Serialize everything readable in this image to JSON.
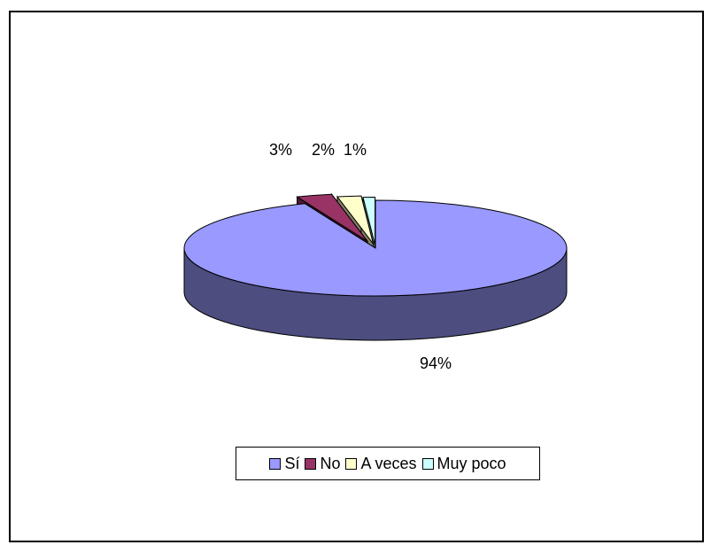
{
  "chart_data": {
    "type": "pie",
    "style": "3d-exploded",
    "title": "",
    "categories": [
      "Sí",
      "No",
      "A veces",
      "Muy poco"
    ],
    "values": [
      94,
      3,
      2,
      1
    ],
    "labels": [
      "94%",
      "3%",
      "2%",
      "1%"
    ],
    "colors": {
      "top": [
        "#9999ff",
        "#993366",
        "#ffffcc",
        "#ccffff"
      ],
      "side": [
        "#4d4d80",
        "#4d1a33",
        "#808066",
        "#668080"
      ]
    },
    "legend_position": "bottom"
  }
}
